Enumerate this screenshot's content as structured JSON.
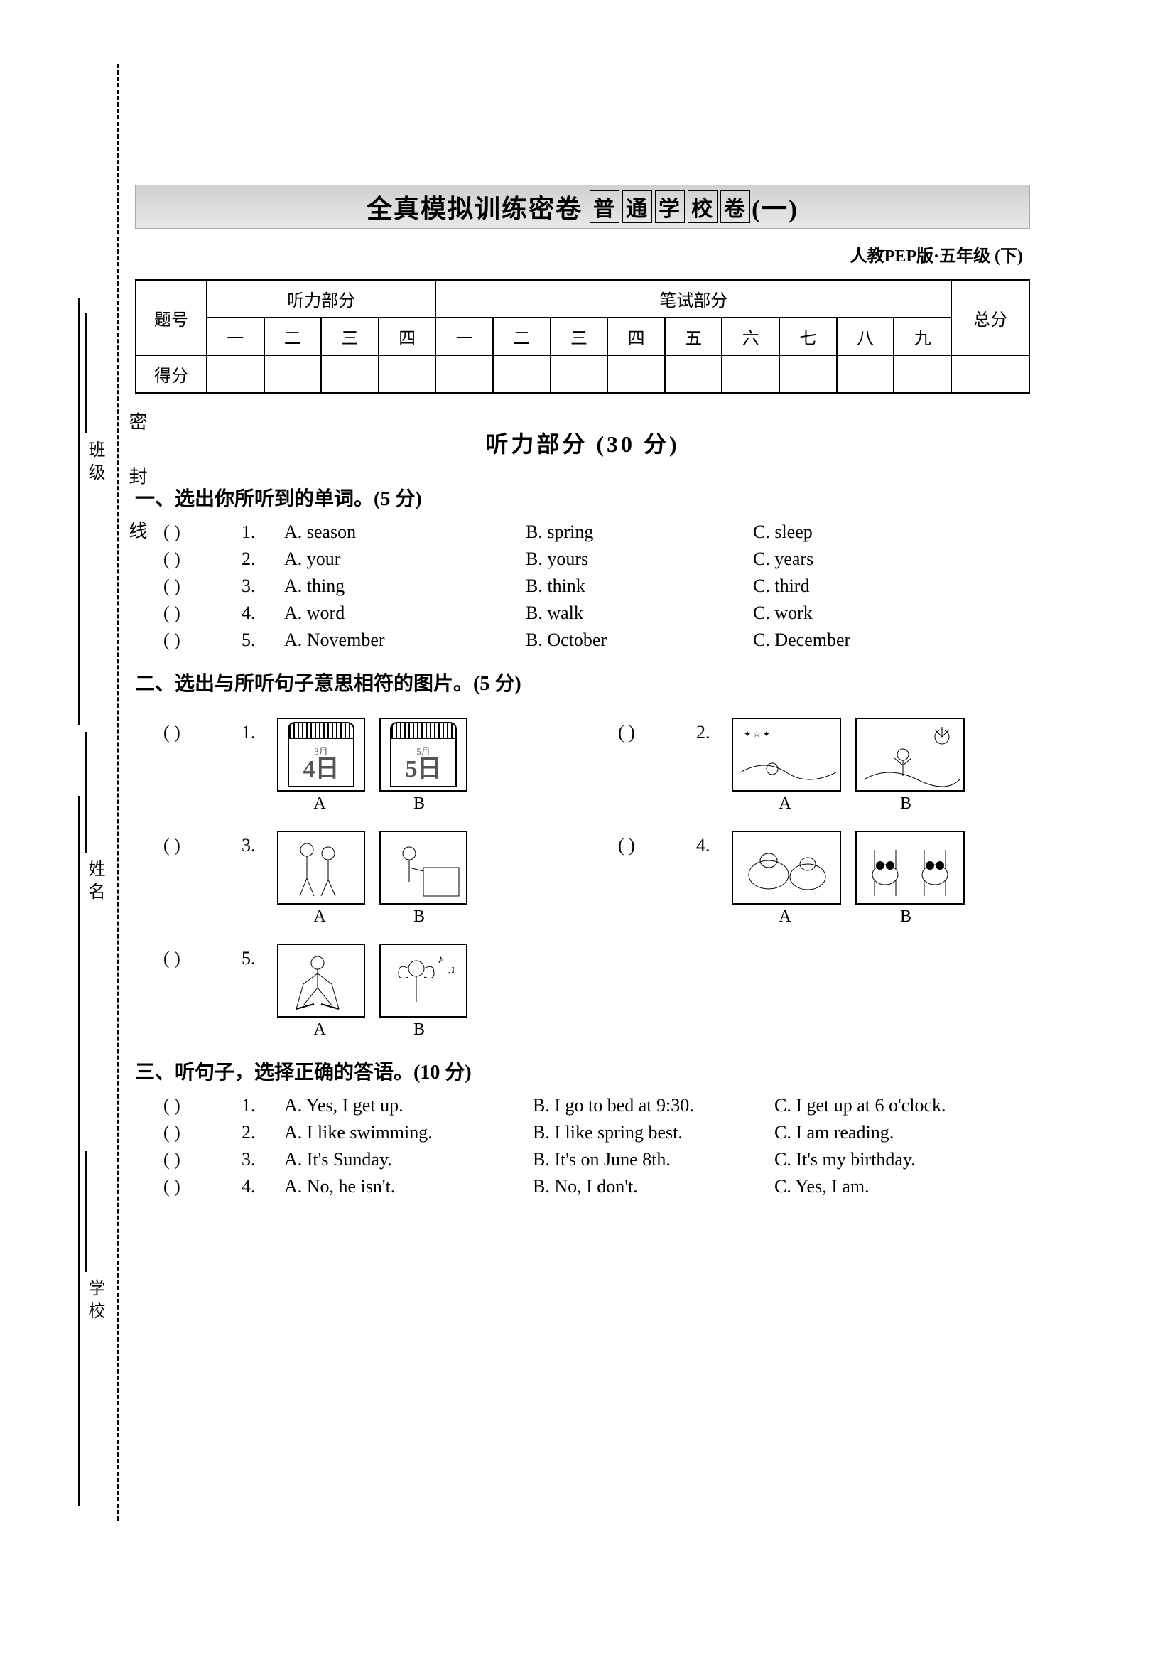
{
  "binding": {
    "school": "学校",
    "name": "姓名",
    "class": "班级",
    "seal": "密    封    线"
  },
  "title": {
    "main": "全真模拟训练密卷",
    "sub_chars": [
      "普",
      "通",
      "学",
      "校",
      "卷"
    ],
    "suffix": "(一)"
  },
  "edition": "人教PEP版·五年级 (下)",
  "score_table": {
    "row1_head": "题号",
    "listen_head": "听力部分",
    "written_head": "笔试部分",
    "total_head": "总分",
    "cols_listen": [
      "一",
      "二",
      "三",
      "四"
    ],
    "cols_written": [
      "一",
      "二",
      "三",
      "四",
      "五",
      "六",
      "七",
      "八",
      "九"
    ],
    "row2_head": "得分"
  },
  "listening_header": "听力部分 (30 分)",
  "q1": {
    "heading": "一、选出你所听到的单词。(5 分)",
    "items": [
      {
        "n": "1.",
        "a": "A. season",
        "b": "B. spring",
        "c": "C. sleep"
      },
      {
        "n": "2.",
        "a": "A. your",
        "b": "B. yours",
        "c": "C. years"
      },
      {
        "n": "3.",
        "a": "A. thing",
        "b": "B. think",
        "c": "C. third"
      },
      {
        "n": "4.",
        "a": "A. word",
        "b": "B. walk",
        "c": "C. work"
      },
      {
        "n": "5.",
        "a": "A. November",
        "b": "B. October",
        "c": "C. December"
      }
    ]
  },
  "q2": {
    "heading": "二、选出与所听句子意思相符的图片。(5 分)",
    "capA": "A",
    "capB": "B",
    "items": [
      {
        "n": "1.",
        "a_month": "3月",
        "a_day": "4日",
        "b_month": "5月",
        "b_day": "5日"
      },
      {
        "n": "2."
      },
      {
        "n": "3."
      },
      {
        "n": "4."
      },
      {
        "n": "5."
      }
    ]
  },
  "q3": {
    "heading": "三、听句子，选择正确的答语。(10 分)",
    "items": [
      {
        "n": "1.",
        "a": "A. Yes, I get up.",
        "b": "B. I go to bed at 9:30.",
        "c": "C. I get up at 6 o'clock."
      },
      {
        "n": "2.",
        "a": "A. I like swimming.",
        "b": "B. I like spring best.",
        "c": "C. I am reading."
      },
      {
        "n": "3.",
        "a": "A. It's Sunday.",
        "b": "B. It's on June 8th.",
        "c": "C. It's my birthday."
      },
      {
        "n": "4.",
        "a": "A. No, he isn't.",
        "b": "B. No, I don't.",
        "c": "C. Yes, I am."
      }
    ]
  },
  "paren": "(        )"
}
